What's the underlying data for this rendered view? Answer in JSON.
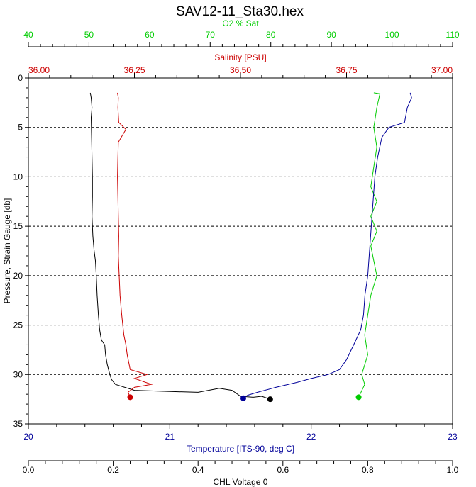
{
  "chart_data": {
    "type": "line",
    "title": "SAV12-11_Sta30.hex",
    "grid": "dashed horizontal lines",
    "y_axis": {
      "label": "Pressure, Strain Gauge [db]",
      "range": [
        0,
        35
      ],
      "inverted": true,
      "ticks": [
        "0",
        "5",
        "10",
        "15",
        "20",
        "25",
        "30",
        "35"
      ],
      "color": "#000000"
    },
    "x_axes": [
      {
        "id": "o2",
        "label": "O2 % Sat",
        "position": "top",
        "range": [
          40,
          110
        ],
        "ticks": [
          "40",
          "50",
          "60",
          "70",
          "80",
          "90",
          "100",
          "110"
        ],
        "color": "#00cc00"
      },
      {
        "id": "salinity",
        "label": "Salinity [PSU]",
        "position": "top",
        "range": [
          36.0,
          37.0
        ],
        "ticks": [
          "36.00",
          "36.25",
          "36.50",
          "36.75",
          "37.00"
        ],
        "color": "#cc0000"
      },
      {
        "id": "temperature",
        "label": "Temperature [ITS-90, deg C]",
        "position": "bottom",
        "range": [
          20,
          23
        ],
        "ticks": [
          "20",
          "21",
          "22",
          "23"
        ],
        "color": "#000099"
      },
      {
        "id": "chl",
        "label": "CHL Voltage 0",
        "position": "bottom",
        "range": [
          0.0,
          1.0
        ],
        "ticks": [
          "0.0",
          "0.2",
          "0.4",
          "0.6",
          "0.8",
          "1.0"
        ],
        "color": "#000000"
      }
    ],
    "series": [
      {
        "axis": "chl",
        "color": "#000000",
        "points": [
          [
            0.146,
            1.5
          ],
          [
            0.148,
            2.0
          ],
          [
            0.149,
            2.5
          ],
          [
            0.15,
            3.0
          ],
          [
            0.148,
            4.0
          ],
          [
            0.149,
            6.0
          ],
          [
            0.15,
            8.0
          ],
          [
            0.151,
            10.0
          ],
          [
            0.151,
            12.0
          ],
          [
            0.15,
            14.0
          ],
          [
            0.152,
            16.0
          ],
          [
            0.155,
            17.5
          ],
          [
            0.158,
            18.5
          ],
          [
            0.16,
            20.0
          ],
          [
            0.162,
            22.0
          ],
          [
            0.165,
            24.0
          ],
          [
            0.168,
            25.5
          ],
          [
            0.172,
            26.5
          ],
          [
            0.18,
            27.0
          ],
          [
            0.182,
            28.0
          ],
          [
            0.186,
            29.0
          ],
          [
            0.192,
            30.0
          ],
          [
            0.196,
            30.5
          ],
          [
            0.205,
            31.0
          ],
          [
            0.25,
            31.6
          ],
          [
            0.32,
            31.7
          ],
          [
            0.4,
            31.8
          ],
          [
            0.45,
            31.4
          ],
          [
            0.48,
            31.6
          ],
          [
            0.5,
            32.2
          ],
          [
            0.53,
            32.3
          ],
          [
            0.55,
            32.2
          ],
          [
            0.57,
            32.5
          ]
        ]
      },
      {
        "axis": "salinity",
        "color": "#cc0000",
        "points": [
          [
            36.21,
            1.5
          ],
          [
            36.212,
            2.0
          ],
          [
            36.211,
            3.0
          ],
          [
            36.213,
            4.5
          ],
          [
            36.23,
            5.2
          ],
          [
            36.212,
            6.5
          ],
          [
            36.211,
            8.0
          ],
          [
            36.21,
            10.0
          ],
          [
            36.211,
            12.0
          ],
          [
            36.212,
            14.0
          ],
          [
            36.213,
            16.0
          ],
          [
            36.212,
            18.0
          ],
          [
            36.214,
            20.0
          ],
          [
            36.216,
            22.0
          ],
          [
            36.22,
            24.0
          ],
          [
            36.225,
            26.0
          ],
          [
            36.23,
            27.0
          ],
          [
            36.233,
            28.0
          ],
          [
            36.24,
            29.5
          ],
          [
            36.28,
            30.0
          ],
          [
            36.25,
            30.4
          ],
          [
            36.29,
            31.0
          ],
          [
            36.25,
            31.3
          ],
          [
            36.235,
            31.8
          ],
          [
            36.24,
            32.3
          ]
        ]
      },
      {
        "axis": "o2",
        "color": "#00cc00",
        "points": [
          [
            97.0,
            1.5
          ],
          [
            98.0,
            1.6
          ],
          [
            97.5,
            3.0
          ],
          [
            97.0,
            5.0
          ],
          [
            97.5,
            7.0
          ],
          [
            97.0,
            9.0
          ],
          [
            96.5,
            11.0
          ],
          [
            97.5,
            12.5
          ],
          [
            96.5,
            14.0
          ],
          [
            97.5,
            15.5
          ],
          [
            96.5,
            17.0
          ],
          [
            97.0,
            18.5
          ],
          [
            97.5,
            20.0
          ],
          [
            96.5,
            22.0
          ],
          [
            96.0,
            24.0
          ],
          [
            95.5,
            26.0
          ],
          [
            96.0,
            28.0
          ],
          [
            95.0,
            30.0
          ],
          [
            95.5,
            31.0
          ],
          [
            94.5,
            32.3
          ]
        ]
      },
      {
        "axis": "temperature",
        "color": "#000099",
        "points": [
          [
            22.7,
            1.5
          ],
          [
            22.71,
            2.0
          ],
          [
            22.68,
            3.0
          ],
          [
            22.66,
            4.5
          ],
          [
            22.55,
            5.0
          ],
          [
            22.5,
            6.0
          ],
          [
            22.47,
            8.0
          ],
          [
            22.45,
            10.0
          ],
          [
            22.44,
            12.0
          ],
          [
            22.43,
            14.0
          ],
          [
            22.42,
            16.0
          ],
          [
            22.41,
            18.0
          ],
          [
            22.4,
            20.0
          ],
          [
            22.38,
            22.0
          ],
          [
            22.37,
            24.0
          ],
          [
            22.35,
            25.5
          ],
          [
            22.3,
            27.0
          ],
          [
            22.25,
            28.5
          ],
          [
            22.2,
            29.5
          ],
          [
            22.12,
            30.0
          ],
          [
            22.0,
            30.4
          ],
          [
            21.9,
            30.8
          ],
          [
            21.75,
            31.3
          ],
          [
            21.62,
            31.8
          ],
          [
            21.55,
            32.1
          ],
          [
            21.52,
            32.4
          ]
        ]
      }
    ]
  }
}
